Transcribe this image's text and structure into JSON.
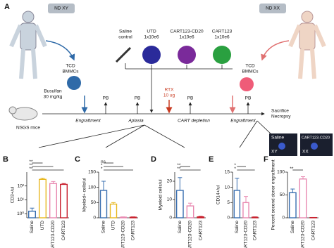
{
  "diagram": {
    "panel": "A",
    "donor_xy": "ND XY",
    "donor_xx": "ND XX",
    "saline": [
      "Saline",
      "control"
    ],
    "utd": [
      "UTD",
      "1x10e6"
    ],
    "cd20": [
      "CART123-CD20",
      "1x10e6"
    ],
    "cart": [
      "CART123",
      "1x10e6"
    ],
    "tcd_left": [
      "TCD",
      "BMMCs"
    ],
    "tcd_right": [
      "TCD",
      "BMMCs"
    ],
    "busulfan": [
      "Busulfan",
      "30 mg/kg"
    ],
    "mice": "NSGS mice",
    "rtx": [
      "RTX",
      "10 ug"
    ],
    "pb": [
      "PB",
      "PB",
      "PB",
      "PB"
    ],
    "phases": [
      "Engraftment",
      "Aplasia",
      "CART depletion",
      "Engraftment"
    ],
    "sacrifice": [
      "Sacrifice",
      "Necropsy"
    ],
    "img_left": [
      "Saline",
      "XY"
    ],
    "img_right": [
      "CART123-CD20",
      "XX"
    ]
  },
  "chart_data": [
    {
      "type": "bar",
      "panel": "B",
      "ylabel": "CD3+/ul",
      "log": true,
      "categories": [
        "Saline",
        "UTD",
        "CART123-CD20",
        "CART123"
      ],
      "values": [
        1.5,
        300,
        150,
        130
      ],
      "errors": [
        1,
        60,
        60,
        20
      ],
      "colors": [
        "#3a6fb0",
        "#e8b820",
        "#e888b0",
        "#c81e2c"
      ],
      "ylim": [
        0.5,
        1000
      ],
      "yticks": [
        {
          "value": 1,
          "label": "10⁰"
        },
        {
          "value": 10,
          "label": "10¹"
        },
        {
          "value": 100,
          "label": "10²"
        }
      ],
      "annotations": [
        "**",
        "**",
        "**"
      ]
    },
    {
      "type": "bar",
      "panel": "C",
      "ylabel": "Myeloid+ cells/ul",
      "categories": [
        "Saline",
        "UTD",
        "CART123-CD20",
        "CART123"
      ],
      "values": [
        90,
        45,
        2,
        2
      ],
      "errors": [
        30,
        5,
        1,
        1
      ],
      "colors": [
        "#3a6fb0",
        "#e8b820",
        "#e888b0",
        "#c81e2c"
      ],
      "ylim": [
        0,
        150
      ],
      "yticks": [
        0,
        50,
        100,
        150
      ],
      "annotations": [
        "ns",
        "*",
        "*"
      ]
    },
    {
      "type": "bar",
      "panel": "D",
      "ylabel": "Myeloid cells/ul",
      "categories": [
        "Saline",
        "CART123-CD20",
        "CART123"
      ],
      "values": [
        15,
        6.5,
        0.5
      ],
      "errors": [
        7,
        1.5,
        0.3
      ],
      "colors": [
        "#3a6fb0",
        "#e888b0",
        "#c81e2c"
      ],
      "ylim": [
        0,
        25
      ],
      "yticks": [
        0,
        10,
        20
      ],
      "annotations": [
        "**",
        "**"
      ]
    },
    {
      "type": "bar",
      "panel": "E",
      "ylabel": "CD14+/ul",
      "categories": [
        "Saline",
        "CART123-CD20",
        "CART123"
      ],
      "values": [
        9,
        5,
        0.2
      ],
      "errors": [
        4,
        2,
        0.1
      ],
      "colors": [
        "#3a6fb0",
        "#e888b0",
        "#c81e2c"
      ],
      "ylim": [
        0,
        15
      ],
      "yticks": [
        0,
        5,
        10,
        15
      ],
      "annotations": [
        "*",
        "*"
      ]
    },
    {
      "type": "bar",
      "panel": "F",
      "ylabel": "Percent second donor engraftment",
      "categories": [
        "Saline",
        "CART123-CD20",
        "CART123"
      ],
      "values": [
        55,
        85,
        0.5
      ],
      "errors": [
        8,
        5,
        0.3
      ],
      "colors": [
        "#3a6fb0",
        "#e888b0",
        "#c81e2c"
      ],
      "ylim": [
        0,
        100
      ],
      "yticks": [
        0,
        50,
        100
      ],
      "annotations": [
        "**"
      ]
    }
  ]
}
